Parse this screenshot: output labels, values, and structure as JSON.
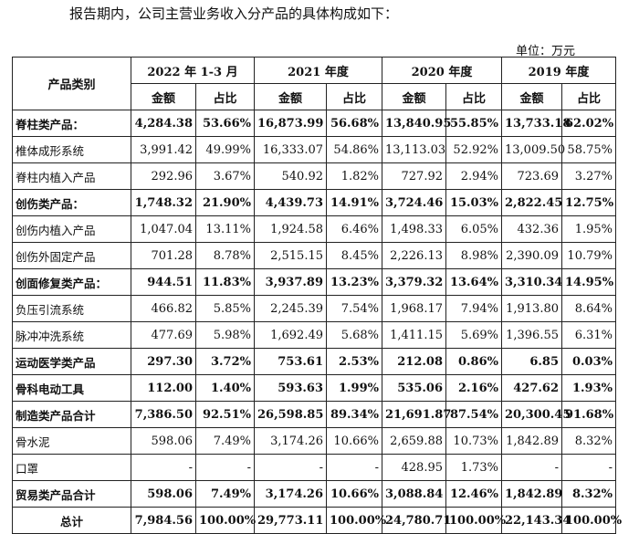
{
  "intro": "报告期内，公司主营业务收入分产品的具体构成如下：",
  "unit": "单位：万元",
  "table": {
    "category_header": "产品类别",
    "periods": [
      "2022 年 1-3 月",
      "2021 年度",
      "2020 年度",
      "2019 年度"
    ],
    "sub_headers": [
      "金额",
      "占比"
    ],
    "rows": [
      {
        "label": "脊柱类产品：",
        "bold": true,
        "cells": [
          "4,284.38",
          "53.66%",
          "16,873.99",
          "56.68%",
          "13,840.95",
          "55.85%",
          "13,733.18",
          "62.02%"
        ]
      },
      {
        "label": "椎体成形系统",
        "bold": false,
        "cells": [
          "3,991.42",
          "49.99%",
          "16,333.07",
          "54.86%",
          "13,113.03",
          "52.92%",
          "13,009.50",
          "58.75%"
        ]
      },
      {
        "label": "脊柱内植入产品",
        "bold": false,
        "cells": [
          "292.96",
          "3.67%",
          "540.92",
          "1.82%",
          "727.92",
          "2.94%",
          "723.69",
          "3.27%"
        ]
      },
      {
        "label": "创伤类产品：",
        "bold": true,
        "cells": [
          "1,748.32",
          "21.90%",
          "4,439.73",
          "14.91%",
          "3,724.46",
          "15.03%",
          "2,822.45",
          "12.75%"
        ]
      },
      {
        "label": "创伤内植入产品",
        "bold": false,
        "cells": [
          "1,047.04",
          "13.11%",
          "1,924.58",
          "6.46%",
          "1,498.33",
          "6.05%",
          "432.36",
          "1.95%"
        ]
      },
      {
        "label": "创伤外固定产品",
        "bold": false,
        "cells": [
          "701.28",
          "8.78%",
          "2,515.15",
          "8.45%",
          "2,226.13",
          "8.98%",
          "2,390.09",
          "10.79%"
        ]
      },
      {
        "label": "创面修复类产品：",
        "bold": true,
        "cells": [
          "944.51",
          "11.83%",
          "3,937.89",
          "13.23%",
          "3,379.32",
          "13.64%",
          "3,310.34",
          "14.95%"
        ]
      },
      {
        "label": "负压引流系统",
        "bold": false,
        "cells": [
          "466.82",
          "5.85%",
          "2,245.39",
          "7.54%",
          "1,968.17",
          "7.94%",
          "1,913.80",
          "8.64%"
        ]
      },
      {
        "label": "脉冲冲洗系统",
        "bold": false,
        "cells": [
          "477.69",
          "5.98%",
          "1,692.49",
          "5.68%",
          "1,411.15",
          "5.69%",
          "1,396.55",
          "6.31%"
        ]
      },
      {
        "label": "运动医学类产品",
        "bold": true,
        "cells": [
          "297.30",
          "3.72%",
          "753.61",
          "2.53%",
          "212.08",
          "0.86%",
          "6.85",
          "0.03%"
        ]
      },
      {
        "label": "骨科电动工具",
        "bold": true,
        "cells": [
          "112.00",
          "1.40%",
          "593.63",
          "1.99%",
          "535.06",
          "2.16%",
          "427.62",
          "1.93%"
        ]
      },
      {
        "label": "制造类产品合计",
        "bold": true,
        "cells": [
          "7,386.50",
          "92.51%",
          "26,598.85",
          "89.34%",
          "21,691.87",
          "87.54%",
          "20,300.45",
          "91.68%"
        ]
      },
      {
        "label": "骨水泥",
        "bold": false,
        "cells": [
          "598.06",
          "7.49%",
          "3,174.26",
          "10.66%",
          "2,659.88",
          "10.73%",
          "1,842.89",
          "8.32%"
        ]
      },
      {
        "label": "口罩",
        "bold": false,
        "cells": [
          "-",
          "-",
          "-",
          "-",
          "428.95",
          "1.73%",
          "-",
          "-"
        ]
      },
      {
        "label": "贸易类产品合计",
        "bold": true,
        "cells": [
          "598.06",
          "7.49%",
          "3,174.26",
          "10.66%",
          "3,088.84",
          "12.46%",
          "1,842.89",
          "8.32%"
        ]
      },
      {
        "label": "总计",
        "bold": true,
        "grand": true,
        "cells": [
          "7,984.56",
          "100.00%",
          "29,773.11",
          "100.00%",
          "24,780.71",
          "100.00%",
          "22,143.34",
          "100.00%"
        ]
      }
    ]
  }
}
